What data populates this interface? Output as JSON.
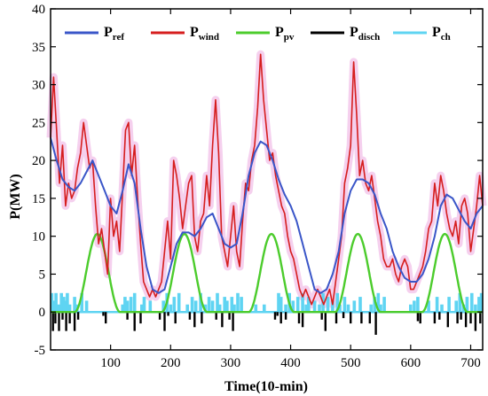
{
  "chart_data": {
    "type": "line",
    "xlabel": "Time(10-min)",
    "ylabel": "P(MW)",
    "xlim": [
      0,
      720
    ],
    "ylim": [
      -5,
      40
    ],
    "xticks": [
      100,
      200,
      300,
      400,
      500,
      600,
      700
    ],
    "yticks": [
      -5,
      0,
      5,
      10,
      15,
      20,
      25,
      30,
      35,
      40
    ],
    "grid": false,
    "legend_position": "top",
    "series": [
      {
        "name": "P_ref",
        "legend_main": "P",
        "legend_sub": "ref",
        "color": "#3a56c8",
        "x": [
          0,
          10,
          20,
          30,
          40,
          50,
          60,
          70,
          80,
          90,
          100,
          110,
          120,
          130,
          140,
          150,
          160,
          170,
          180,
          190,
          200,
          210,
          220,
          230,
          240,
          250,
          260,
          270,
          280,
          290,
          300,
          310,
          320,
          330,
          340,
          350,
          360,
          370,
          380,
          390,
          400,
          410,
          420,
          430,
          440,
          450,
          460,
          470,
          480,
          490,
          500,
          510,
          520,
          530,
          540,
          550,
          560,
          570,
          580,
          590,
          600,
          610,
          620,
          630,
          640,
          650,
          660,
          670,
          680,
          690,
          700,
          710,
          720
        ],
        "values": [
          23,
          20,
          17.5,
          16.5,
          16,
          17,
          18.5,
          20,
          18,
          16,
          14,
          13,
          16,
          19.5,
          17,
          11,
          6,
          3,
          2.5,
          3,
          6,
          9,
          10.5,
          10.5,
          10,
          11,
          12.5,
          13,
          11,
          9,
          8.5,
          9,
          13,
          18,
          21,
          22.5,
          22,
          20,
          17.5,
          15.5,
          14,
          12,
          9,
          6,
          3,
          2.5,
          3,
          5,
          8,
          13,
          16,
          17.5,
          17.5,
          17,
          15.5,
          13,
          11,
          8,
          6,
          4.5,
          4,
          4,
          5,
          7,
          10,
          14,
          15.5,
          15,
          13.5,
          12,
          11,
          13,
          14
        ]
      },
      {
        "name": "P_wind",
        "legend_main": "P",
        "legend_sub": "wind",
        "color": "#d61e1e",
        "x": [
          0,
          5,
          10,
          15,
          20,
          25,
          30,
          35,
          40,
          45,
          50,
          55,
          60,
          65,
          70,
          75,
          80,
          85,
          90,
          95,
          100,
          105,
          110,
          115,
          120,
          125,
          130,
          135,
          140,
          145,
          150,
          155,
          160,
          165,
          170,
          175,
          180,
          185,
          190,
          195,
          200,
          205,
          210,
          215,
          220,
          225,
          230,
          235,
          240,
          245,
          250,
          255,
          260,
          265,
          270,
          275,
          280,
          285,
          290,
          295,
          300,
          305,
          310,
          315,
          320,
          325,
          330,
          335,
          340,
          345,
          350,
          355,
          360,
          365,
          370,
          375,
          380,
          385,
          390,
          395,
          400,
          405,
          410,
          415,
          420,
          425,
          430,
          435,
          440,
          445,
          450,
          455,
          460,
          465,
          470,
          475,
          480,
          485,
          490,
          495,
          500,
          505,
          510,
          515,
          520,
          525,
          530,
          535,
          540,
          545,
          550,
          555,
          560,
          565,
          570,
          575,
          580,
          585,
          590,
          595,
          600,
          605,
          610,
          615,
          620,
          625,
          630,
          635,
          640,
          645,
          650,
          655,
          660,
          665,
          670,
          675,
          680,
          685,
          690,
          695,
          700,
          705,
          710,
          715,
          720
        ],
        "values": [
          23,
          31,
          24,
          17,
          22,
          14,
          17,
          15,
          16,
          19,
          21,
          25,
          22,
          19,
          20,
          14,
          9,
          11,
          8,
          5,
          15,
          10,
          12,
          8,
          16,
          24,
          25,
          18,
          22,
          15,
          9,
          4,
          3,
          2,
          3,
          2,
          3,
          4,
          8,
          12,
          7,
          20,
          18,
          15,
          11,
          14,
          17,
          18,
          10,
          8,
          12,
          13,
          18,
          14,
          22,
          28,
          21,
          10,
          8,
          6,
          10,
          14,
          8,
          6,
          12,
          17,
          16,
          20,
          22,
          27,
          34,
          28,
          24,
          20,
          21,
          18,
          16,
          14,
          13,
          10,
          8,
          7,
          5,
          3,
          2,
          3,
          2,
          1,
          2,
          3,
          2,
          1,
          2,
          3,
          1,
          4,
          7,
          10,
          17,
          19,
          22,
          33,
          26,
          18,
          20,
          17,
          16,
          18,
          15,
          12,
          10,
          7,
          6,
          6,
          7,
          5,
          4,
          6,
          7,
          6,
          3,
          3,
          4,
          5,
          6,
          8,
          11,
          12,
          17,
          14,
          18,
          16,
          13,
          11,
          10,
          12,
          9,
          14,
          15,
          13,
          8,
          11,
          14,
          18,
          14
        ]
      },
      {
        "name": "P_pv",
        "legend_main": "P",
        "legend_sub": "pv",
        "color": "#4ccc2c",
        "peaks": [
          78,
          223,
          368,
          512,
          657
        ],
        "peak_value": 10.3,
        "half_width": 38
      },
      {
        "name": "P_disch",
        "legend_main": "P",
        "legend_sub": "disch",
        "color": "#000000",
        "x": [
          4,
          8,
          14,
          20,
          26,
          32,
          40,
          46,
          88,
          92,
          128,
          140,
          150,
          182,
          190,
          196,
          208,
          232,
          240,
          252,
          276,
          286,
          298,
          304,
          374,
          378,
          384,
          392,
          414,
          420,
          452,
          458,
          476,
          488,
          500,
          518,
          532,
          542,
          612,
          616,
          640,
          648,
          662,
          678,
          684,
          692,
          700,
          708,
          716
        ],
        "values": [
          -2.5,
          -1.5,
          -2.5,
          -1,
          -2.5,
          -1.5,
          -2.5,
          -1,
          -0.5,
          -1.5,
          -1,
          -2.5,
          -1.5,
          -1,
          -2.5,
          -0.5,
          -1.5,
          -1,
          -2,
          -1.5,
          -1,
          -2,
          -1,
          -2.5,
          -1,
          -0.5,
          -1.5,
          -1,
          -1.5,
          -2,
          -1,
          -2.5,
          -1.5,
          -0.8,
          -1.5,
          -1.5,
          -1.5,
          -3,
          -1.2,
          -1.5,
          -1.5,
          -1,
          -2,
          -1.5,
          -1,
          -2,
          -1.5,
          -2.5,
          -1.5
        ]
      },
      {
        "name": "P_ch",
        "legend_main": "P",
        "legend_sub": "ch",
        "color": "#5fd4f2",
        "x": [
          2,
          5,
          9,
          13,
          18,
          22,
          26,
          28,
          32,
          40,
          44,
          52,
          60,
          120,
          124,
          128,
          134,
          140,
          152,
          156,
          166,
          188,
          194,
          200,
          206,
          214,
          228,
          236,
          242,
          250,
          258,
          264,
          270,
          278,
          282,
          290,
          294,
          302,
          306,
          312,
          318,
          342,
          356,
          380,
          384,
          392,
          398,
          404,
          412,
          420,
          426,
          430,
          440,
          448,
          454,
          462,
          470,
          478,
          482,
          490,
          496,
          506,
          516,
          534,
          540,
          546,
          550,
          556,
          600,
          606,
          612,
          630,
          644,
          652,
          664,
          676,
          682,
          688,
          694,
          702,
          708,
          714,
          718
        ],
        "values": [
          2.5,
          1.5,
          2.5,
          1,
          2.5,
          2,
          1.5,
          2.5,
          1,
          2,
          1,
          2.5,
          1.5,
          1,
          2,
          1.5,
          2,
          2.5,
          1,
          2,
          1.5,
          1.5,
          2.5,
          1,
          2,
          2.5,
          1,
          2,
          1.5,
          2.5,
          1,
          2,
          1.5,
          2.5,
          1,
          2,
          1.5,
          2,
          1,
          2.5,
          2,
          1,
          1,
          2.5,
          2,
          1,
          2.5,
          1.5,
          2,
          2.5,
          1,
          2,
          1.5,
          1,
          2.5,
          2,
          1.5,
          2.5,
          1,
          2,
          1,
          1.5,
          2,
          1,
          2,
          2.5,
          1,
          2,
          1,
          1.5,
          2,
          1.5,
          2,
          1,
          2,
          1.5,
          2.5,
          1,
          2,
          2.5,
          1,
          2,
          2.5
        ]
      }
    ]
  }
}
